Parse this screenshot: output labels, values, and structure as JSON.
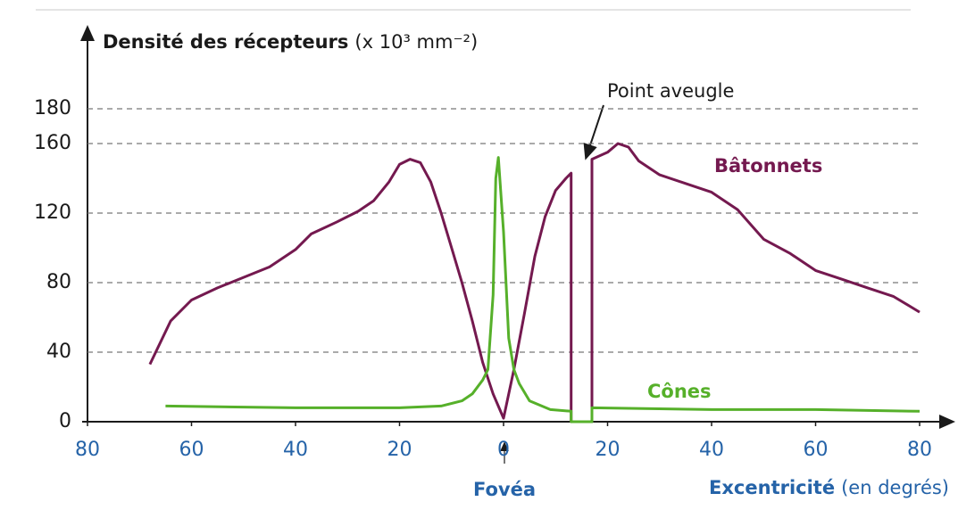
{
  "chart_data": {
    "type": "line",
    "y_label": "Densité des récepteurs",
    "y_label_unit": "(x 10³ mm⁻²)",
    "x_label": "Excentricité",
    "x_label_unit": "(en degrés)",
    "annotations": {
      "fovea": "Fovéa",
      "blind_spot": "Point aveugle"
    },
    "xlim": [
      -80,
      80
    ],
    "xticks": [
      {
        "value": -80,
        "label": "80"
      },
      {
        "value": -60,
        "label": "60"
      },
      {
        "value": -40,
        "label": "40"
      },
      {
        "value": -20,
        "label": "20"
      },
      0,
      20,
      40,
      60,
      80
    ],
    "ylim": [
      0,
      200
    ],
    "yticks": [
      0,
      40,
      80,
      120,
      160,
      180
    ],
    "grid": true,
    "series": [
      {
        "name": "Bâtonnets",
        "color": "#74194f",
        "x": [
          -68,
          -64,
          -60,
          -55,
          -50,
          -45,
          -40,
          -37,
          -32,
          -28,
          -25,
          -22,
          -20,
          -18,
          -16,
          -14,
          -12,
          -10,
          -8,
          -6,
          -4,
          -2,
          0,
          2,
          4,
          6,
          8,
          10,
          12,
          13,
          13,
          17,
          17,
          20,
          22,
          24,
          26,
          30,
          35,
          40,
          45,
          50,
          55,
          60,
          65,
          70,
          75,
          80
        ],
        "values": [
          33,
          58,
          70,
          77,
          83,
          89,
          99,
          108,
          115,
          121,
          127,
          138,
          148,
          151,
          149,
          138,
          120,
          100,
          80,
          58,
          34,
          16,
          2,
          30,
          62,
          95,
          118,
          133,
          140,
          143,
          0,
          0,
          151,
          155,
          160,
          158,
          150,
          142,
          137,
          132,
          122,
          105,
          97,
          87,
          82,
          77,
          72,
          63
        ]
      },
      {
        "name": "Cônes",
        "color": "#56b02a",
        "x": [
          -65,
          -40,
          -20,
          -12,
          -8,
          -6,
          -4,
          -3,
          -2,
          -1.5,
          -1,
          0,
          1,
          2,
          3,
          5,
          9,
          13,
          13,
          17,
          17,
          40,
          60,
          80
        ],
        "values": [
          9,
          8,
          8,
          9,
          12,
          16,
          24,
          30,
          73,
          140,
          152,
          109,
          48,
          30,
          22,
          12,
          7,
          6,
          0,
          0,
          8,
          7,
          7,
          6
        ]
      }
    ]
  }
}
